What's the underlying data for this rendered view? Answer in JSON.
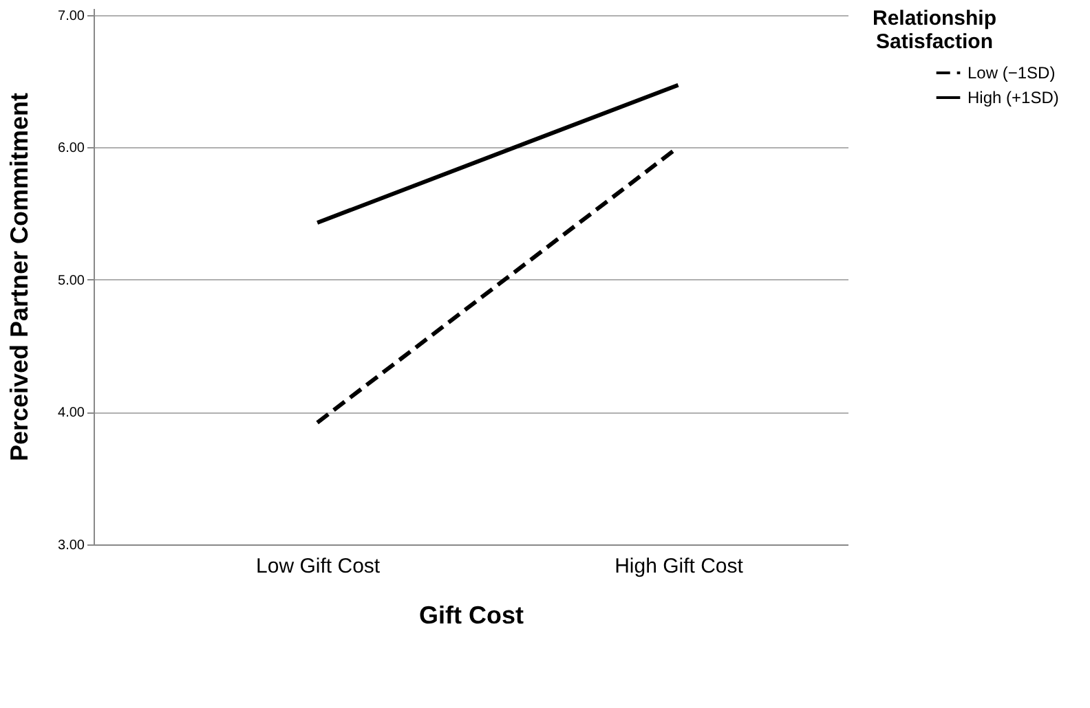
{
  "chart_data": {
    "type": "line",
    "xlabel": "Gift Cost",
    "ylabel": "Perceived Partner Commitment",
    "legend_title": "Relationship Satisfaction",
    "categories": [
      "Low Gift Cost",
      "High Gift Cost"
    ],
    "series": [
      {
        "name": "Low (−1SD)",
        "color": "#000000",
        "values": [
          3.92,
          6.0
        ],
        "line_style": "dashed"
      },
      {
        "name": "High (+1SD)",
        "color": "#000000",
        "values": [
          5.43,
          6.47
        ],
        "line_style": "solid"
      }
    ],
    "ylim": [
      3,
      7.05
    ],
    "yticks": [
      {
        "value": 3,
        "label": "3.00"
      },
      {
        "value": 4,
        "label": "4.00"
      },
      {
        "value": 5,
        "label": "5.00"
      },
      {
        "value": 6,
        "label": "6.00"
      },
      {
        "value": 7,
        "label": "7.00"
      }
    ],
    "grid": "y",
    "legend": "top right",
    "marker": "none"
  }
}
